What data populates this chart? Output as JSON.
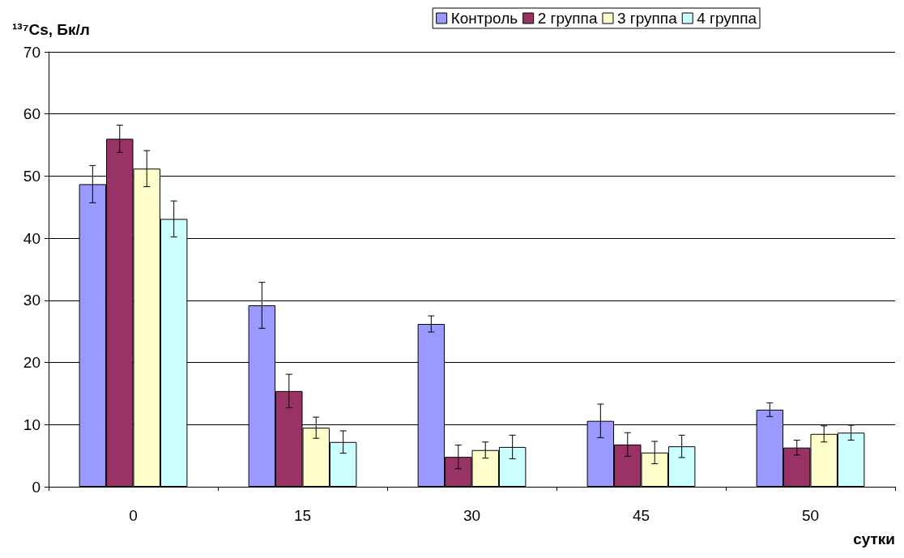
{
  "chart_data": {
    "type": "bar",
    "ylabel": "¹³⁷Cs, Бк/л",
    "xlabel": "сутки",
    "categories": [
      "0",
      "15",
      "30",
      "45",
      "50"
    ],
    "series": [
      {
        "name": "Контроль",
        "color": "#9999ff",
        "values": [
          48.7,
          29.2,
          26.2,
          10.6,
          12.4
        ],
        "errors": [
          3,
          3.7,
          1.3,
          2.7,
          1.1
        ]
      },
      {
        "name": "2 группа",
        "color": "#993366",
        "values": [
          56.0,
          15.4,
          4.8,
          6.8,
          6.3
        ],
        "errors": [
          2.2,
          2.7,
          1.9,
          1.9,
          1.2
        ]
      },
      {
        "name": "3 группа",
        "color": "#ffffcc",
        "values": [
          51.2,
          9.5,
          5.9,
          5.5,
          8.5
        ],
        "errors": [
          2.9,
          1.7,
          1.3,
          1.8,
          1.3
        ]
      },
      {
        "name": "4 группа",
        "color": "#ccffff",
        "values": [
          43.1,
          7.2,
          6.4,
          6.5,
          8.7
        ],
        "errors": [
          2.9,
          1.8,
          1.9,
          1.8,
          1.2
        ]
      }
    ],
    "ylim": [
      0,
      70
    ],
    "yticks": [
      0,
      10,
      20,
      30,
      40,
      50,
      60,
      70
    ],
    "grid": "y",
    "legend": "top right"
  }
}
